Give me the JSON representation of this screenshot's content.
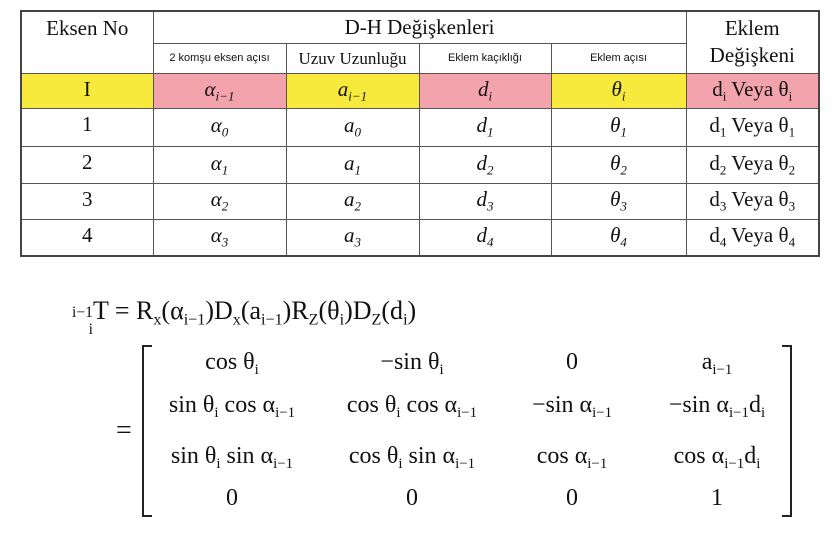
{
  "table": {
    "header": {
      "axis": "Eksen No",
      "dh": "D-H Değişkenleri",
      "joint": "Eklem Değişkeni"
    },
    "subheaders": [
      "2 komşu eksen açısı",
      "Uzuv Uzunluğu",
      "Eklem kaçıklığı",
      "Eklem açısı"
    ],
    "rows": [
      {
        "axis": "I",
        "params": [
          [
            {
              "t": "α",
              "sub": "i−1"
            }
          ],
          [
            {
              "t": "a",
              "sub": "i−1"
            }
          ],
          [
            {
              "t": "d",
              "sub": "i"
            }
          ],
          [
            {
              "t": "θ",
              "sub": "i"
            }
          ]
        ],
        "joint": [
          {
            "t": "d",
            "sub": "i"
          },
          {
            "t": " Veya "
          },
          {
            "t": "θ",
            "sub": "i"
          }
        ]
      },
      {
        "axis": "1",
        "params": [
          [
            {
              "t": "α",
              "sub": "0"
            }
          ],
          [
            {
              "t": "a",
              "sub": "0"
            }
          ],
          [
            {
              "t": "d",
              "sub": "1"
            }
          ],
          [
            {
              "t": "θ",
              "sub": "1"
            }
          ]
        ],
        "joint": [
          {
            "t": "d",
            "sub": "1"
          },
          {
            "t": " Veya "
          },
          {
            "t": "θ",
            "sub": "1"
          }
        ]
      },
      {
        "axis": "2",
        "params": [
          [
            {
              "t": "α",
              "sub": "1"
            }
          ],
          [
            {
              "t": "a",
              "sub": "1"
            }
          ],
          [
            {
              "t": "d",
              "sub": "2"
            }
          ],
          [
            {
              "t": "θ",
              "sub": "2"
            }
          ]
        ],
        "joint": [
          {
            "t": "d",
            "sub": "2"
          },
          {
            "t": " Veya "
          },
          {
            "t": "θ",
            "sub": "2"
          }
        ]
      },
      {
        "axis": "3",
        "params": [
          [
            {
              "t": "α",
              "sub": "2"
            }
          ],
          [
            {
              "t": "a",
              "sub": "2"
            }
          ],
          [
            {
              "t": "d",
              "sub": "3"
            }
          ],
          [
            {
              "t": "θ",
              "sub": "3"
            }
          ]
        ],
        "joint": [
          {
            "t": "d",
            "sub": "3"
          },
          {
            "t": " Veya "
          },
          {
            "t": "θ",
            "sub": "3"
          }
        ]
      },
      {
        "axis": "4",
        "params": [
          [
            {
              "t": "α",
              "sub": "3"
            }
          ],
          [
            {
              "t": "a",
              "sub": "3"
            }
          ],
          [
            {
              "t": "d",
              "sub": "4"
            }
          ],
          [
            {
              "t": "θ",
              "sub": "4"
            }
          ]
        ],
        "joint": [
          {
            "t": "d",
            "sub": "4"
          },
          {
            "t": " Veya "
          },
          {
            "t": "θ",
            "sub": "4"
          }
        ]
      }
    ]
  },
  "equation": {
    "lhs": [
      {
        "pre_sup": "i−1",
        "pre_sub": "i",
        "t": "T = R",
        "sub": "x"
      },
      {
        "t": "(α",
        "sub": "i−1"
      },
      {
        "t": ")D",
        "sub": "x"
      },
      {
        "t": "(a",
        "sub": "i−1"
      },
      {
        "t": ")R",
        "sub": "Z"
      },
      {
        "t": "(θ",
        "sub": "i"
      },
      {
        "t": ")D",
        "sub": "Z"
      },
      {
        "t": "(d",
        "sub": "i"
      },
      {
        "t": ")"
      }
    ],
    "equals": "=",
    "matrix": [
      [
        [
          {
            "t": "cos θ",
            "sub": "i"
          }
        ],
        [
          {
            "t": "−sin θ",
            "sub": "i"
          }
        ],
        [
          {
            "t": "0"
          }
        ],
        [
          {
            "t": "a",
            "sub": "i−1"
          }
        ]
      ],
      [
        [
          {
            "t": "sin θ",
            "sub": "i"
          },
          {
            "t": " cos α",
            "sub": "i−1"
          }
        ],
        [
          {
            "t": "cos θ",
            "sub": "i"
          },
          {
            "t": " cos α",
            "sub": "i−1"
          }
        ],
        [
          {
            "t": "−sin α",
            "sub": "i−1"
          }
        ],
        [
          {
            "t": "−sin α",
            "sub": "i−1"
          },
          {
            "t": "d",
            "sub": "i"
          }
        ]
      ],
      [
        [
          {
            "t": "sin θ",
            "sub": "i"
          },
          {
            "t": " sin α",
            "sub": "i−1"
          }
        ],
        [
          {
            "t": "cos θ",
            "sub": "i"
          },
          {
            "t": " sin α",
            "sub": "i−1"
          }
        ],
        [
          {
            "t": "cos α",
            "sub": "i−1"
          }
        ],
        [
          {
            "t": "cos α",
            "sub": "i−1"
          },
          {
            "t": "d",
            "sub": "i"
          }
        ]
      ],
      [
        [
          {
            "t": "0"
          }
        ],
        [
          {
            "t": "0"
          }
        ],
        [
          {
            "t": "0"
          }
        ],
        [
          {
            "t": "1"
          }
        ]
      ]
    ]
  }
}
